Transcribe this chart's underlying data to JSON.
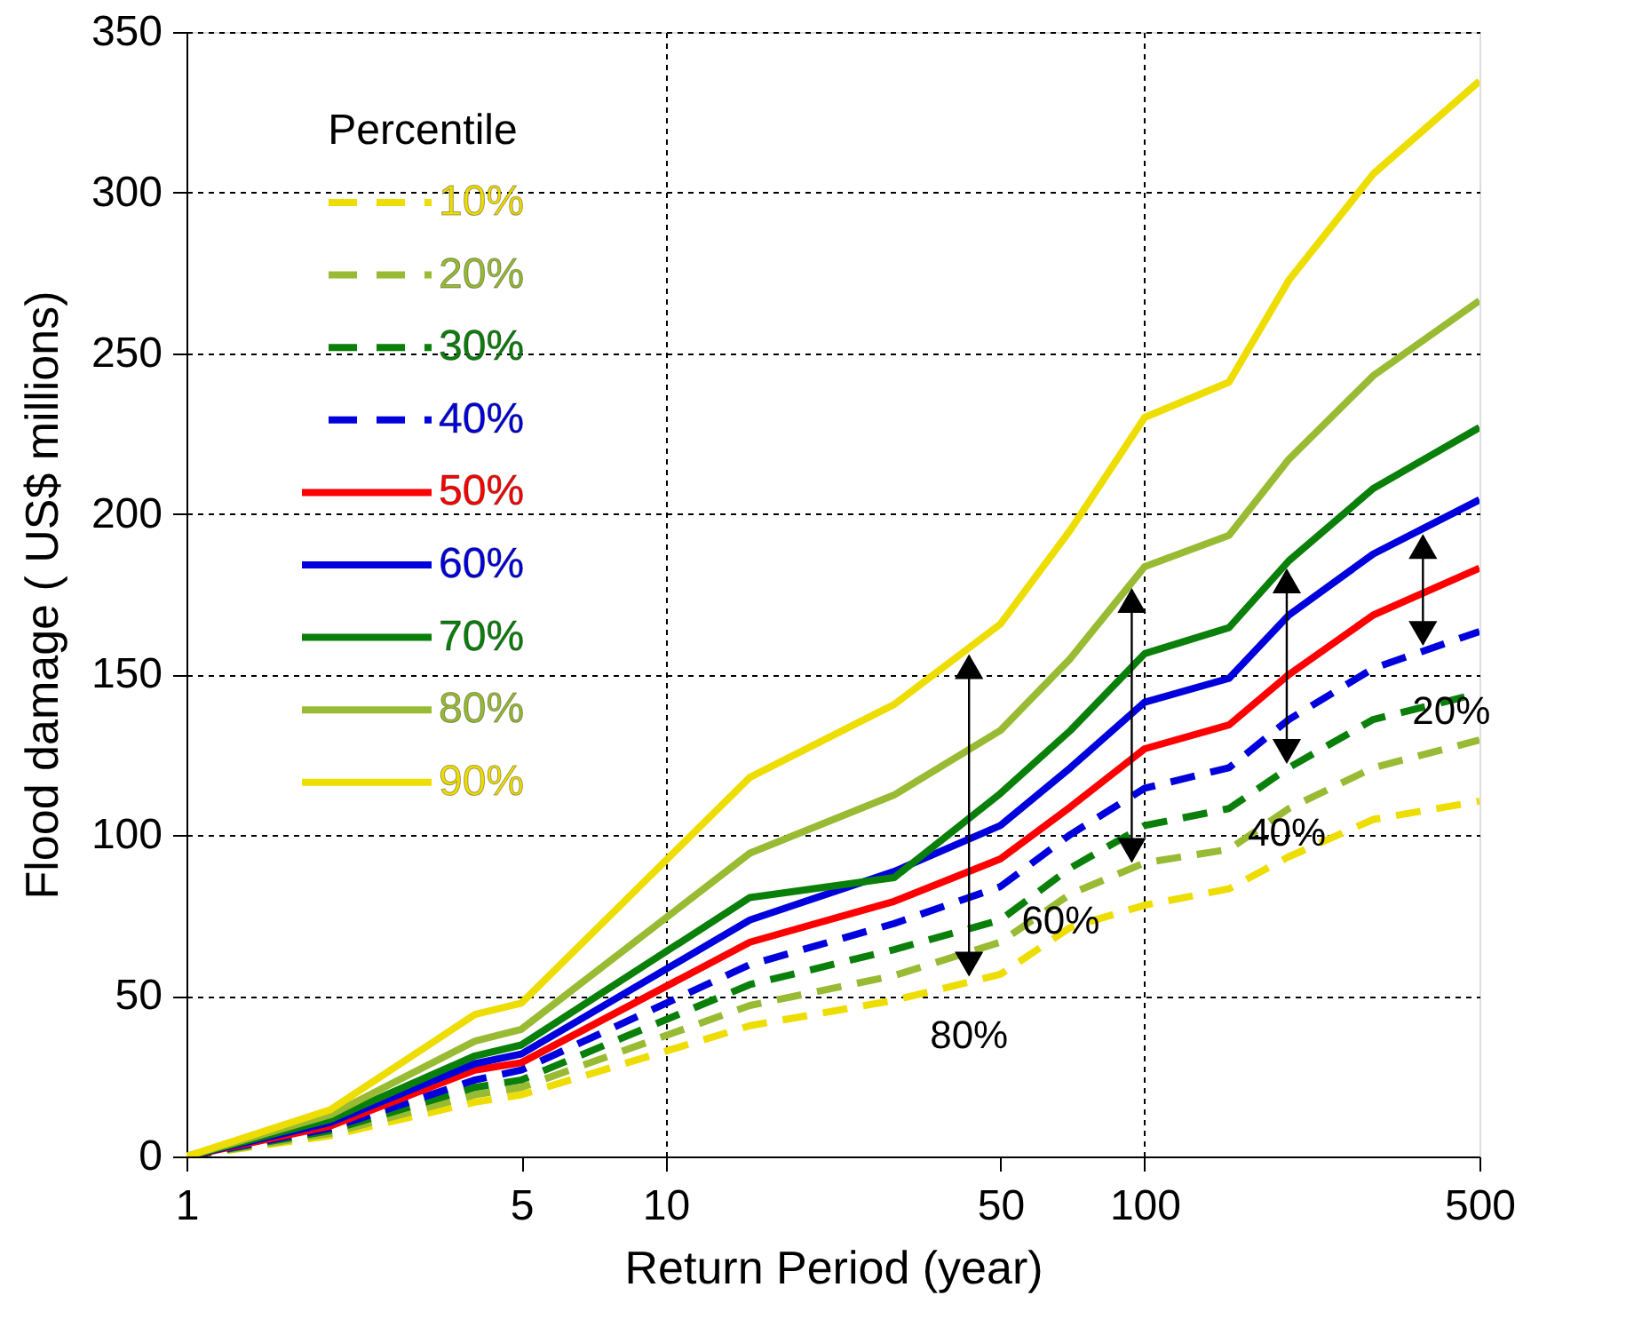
{
  "chart_data": {
    "type": "line",
    "xlabel": "Return Period (year)",
    "ylabel": "Flood damage ( US$ millions)",
    "legend_title": "Percentile",
    "x": [
      1,
      2,
      4,
      5,
      15,
      30,
      50,
      70,
      100,
      150,
      200,
      300,
      500
    ],
    "series": [
      {
        "name": "10%",
        "color": "#eedd00",
        "line_style": "dashed",
        "values": [
          0,
          6.5,
          16.9,
          19.2,
          40.7,
          48.6,
          56.7,
          71.3,
          78.2,
          83.3,
          93.3,
          104.9,
          110.6
        ]
      },
      {
        "name": "20%",
        "color": "#99bb33",
        "line_style": "dashed",
        "values": [
          0,
          7.2,
          19.2,
          21.5,
          47,
          56.3,
          66.7,
          81.7,
          91.4,
          95.6,
          108.3,
          121,
          129.6
        ]
      },
      {
        "name": "30%",
        "color": "#0a800a",
        "line_style": "dashed",
        "values": [
          0,
          8.1,
          21.5,
          23.8,
          53.5,
          64.4,
          73.6,
          89.8,
          103,
          108.3,
          121,
          136,
          144.2
        ]
      },
      {
        "name": "40%",
        "color": "#0000dd",
        "line_style": "dashed",
        "values": [
          0,
          8.8,
          23.8,
          26.9,
          59.7,
          72.5,
          84,
          100.2,
          114.6,
          121,
          136,
          151.9,
          163.4
        ]
      },
      {
        "name": "50%",
        "color": "#ff0000",
        "line_style": "solid",
        "values": [
          0,
          9.5,
          26.9,
          29.2,
          66.7,
          79.4,
          92.6,
          108.8,
          126.9,
          134.3,
          150,
          168.5,
          183.1
        ]
      },
      {
        "name": "60%",
        "color": "#0000dd",
        "line_style": "solid",
        "values": [
          0,
          10.6,
          28.9,
          31.9,
          73.6,
          88.7,
          103,
          121,
          141.4,
          148.8,
          168.5,
          187.5,
          204.4
        ]
      },
      {
        "name": "70%",
        "color": "#0a800a",
        "line_style": "solid",
        "values": [
          0,
          11.6,
          31.3,
          34.7,
          80.6,
          86.8,
          113,
          132.6,
          156.5,
          164.6,
          185.4,
          207.9,
          226.9
        ]
      },
      {
        "name": "80%",
        "color": "#99bb33",
        "line_style": "solid",
        "values": [
          0,
          13,
          35.9,
          39.6,
          94.4,
          112.5,
          132.6,
          155,
          183.6,
          193.3,
          217,
          243,
          266.4
        ]
      },
      {
        "name": "90%",
        "color": "#eedd00",
        "line_style": "solid",
        "values": [
          0,
          14.6,
          44.2,
          47.7,
          118,
          140.7,
          165.7,
          195,
          230,
          241,
          272.7,
          305.8,
          334.7
        ]
      }
    ],
    "annotations": [
      {
        "text": "80%",
        "x": 43,
        "y": 158
      },
      {
        "text": "60%",
        "x": 94,
        "y": 178.6
      },
      {
        "text": "40%",
        "x": 198,
        "y": 184.7
      },
      {
        "text": "20%",
        "x": 381,
        "y": 195.4
      }
    ],
    "log": "x",
    "xlim": [
      1,
      500
    ],
    "xticks": [
      1,
      5,
      10,
      50,
      100,
      500
    ],
    "ylim": [
      0,
      350
    ],
    "yticks": [
      0,
      50,
      100,
      150,
      200,
      250,
      300,
      350
    ],
    "grid": true,
    "legend": "top left"
  }
}
